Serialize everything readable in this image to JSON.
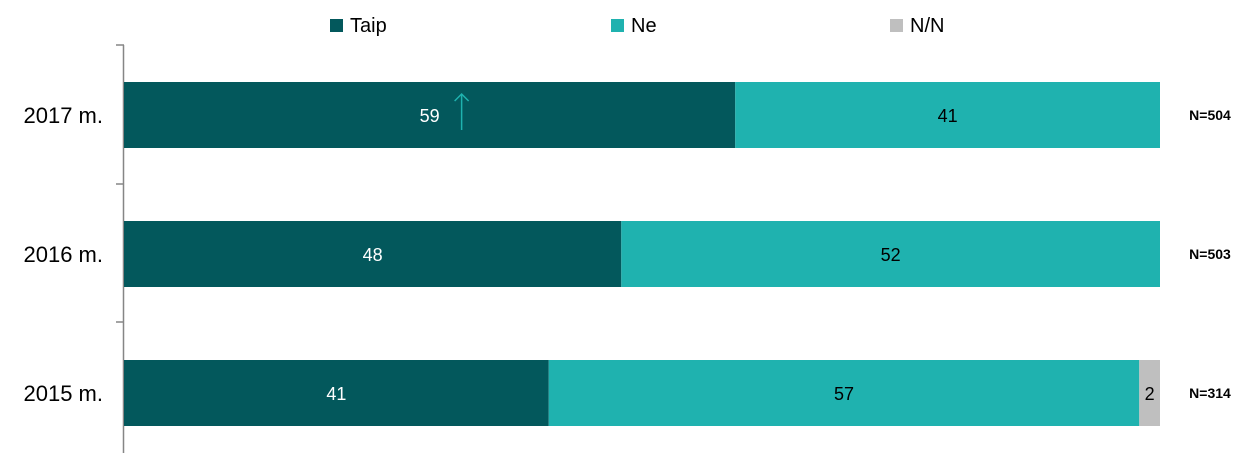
{
  "chart_data": {
    "type": "bar",
    "orientation": "horizontal",
    "stacked": true,
    "percent_stacked": true,
    "categories": [
      "2017 m.",
      "2016 m.",
      "2015 m."
    ],
    "series": [
      {
        "name": "Taip",
        "values": [
          59,
          48,
          41
        ],
        "color": "#03585C",
        "label_color": "#ffffff"
      },
      {
        "name": "Ne",
        "values": [
          41,
          52,
          57
        ],
        "color": "#1FB2AF",
        "label_color": "#000000"
      },
      {
        "name": "N/N",
        "values": [
          0,
          0,
          2
        ],
        "color": "#BFBFBF",
        "label_color": "#000000"
      }
    ],
    "sample_sizes": [
      "N=504",
      "N=503",
      "N=314"
    ],
    "annotations": [
      {
        "category": "2017 m.",
        "series": "Taip",
        "symbol": "up-arrow",
        "color": "#1FB2AF"
      }
    ],
    "xlim": [
      0,
      100
    ],
    "legend_position": "top",
    "grid": false,
    "title": "",
    "xlabel": "",
    "ylabel": ""
  }
}
